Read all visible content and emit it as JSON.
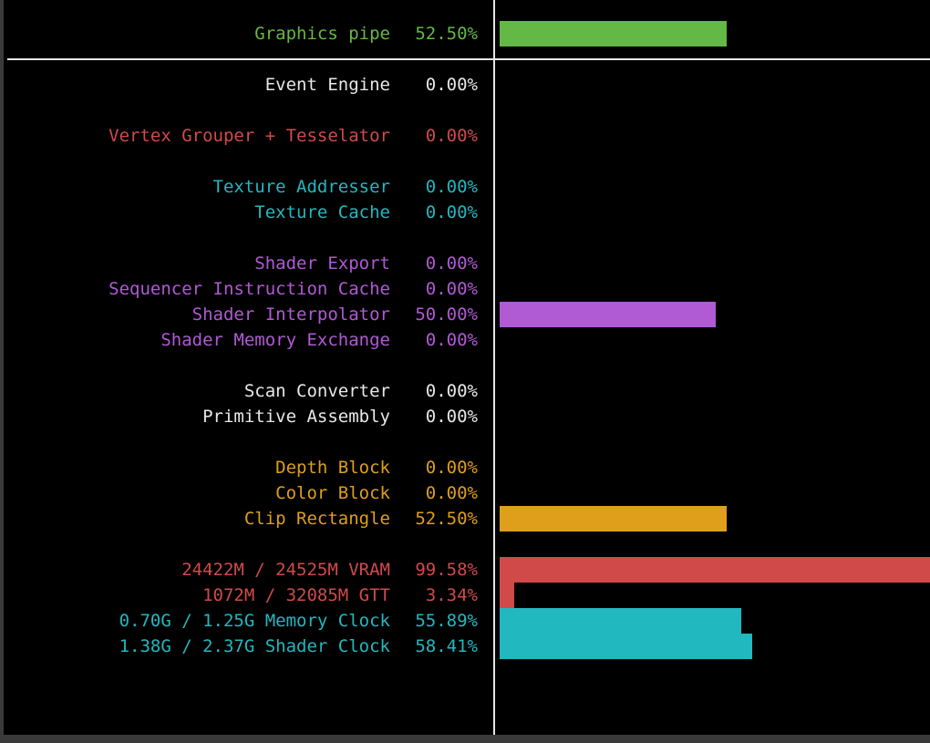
{
  "colors": {
    "green": "#64b846",
    "white": "#e8e8e8",
    "red": "#d04a4a",
    "cyan": "#22b8c0",
    "purple": "#b05ad4",
    "orange": "#df9f1a"
  },
  "header": {
    "label": "Graphics pipe",
    "percent": "52.50%",
    "value": 52.5,
    "color": "green"
  },
  "rows": [
    {
      "label": "Event Engine",
      "percent": "0.00%",
      "value": 0.0,
      "color": "white"
    },
    {
      "label": "Vertex Grouper + Tesselator",
      "percent": "0.00%",
      "value": 0.0,
      "color": "red"
    },
    {
      "label": "Texture Addresser",
      "percent": "0.00%",
      "value": 0.0,
      "color": "cyan"
    },
    {
      "label": "Texture Cache",
      "percent": "0.00%",
      "value": 0.0,
      "color": "cyan"
    },
    {
      "label": "Shader Export",
      "percent": "0.00%",
      "value": 0.0,
      "color": "purple"
    },
    {
      "label": "Sequencer Instruction Cache",
      "percent": "0.00%",
      "value": 0.0,
      "color": "purple"
    },
    {
      "label": "Shader Interpolator",
      "percent": "50.00%",
      "value": 50.0,
      "color": "purple"
    },
    {
      "label": "Shader Memory Exchange",
      "percent": "0.00%",
      "value": 0.0,
      "color": "purple"
    },
    {
      "label": "Scan Converter",
      "percent": "0.00%",
      "value": 0.0,
      "color": "white"
    },
    {
      "label": "Primitive Assembly",
      "percent": "0.00%",
      "value": 0.0,
      "color": "white"
    },
    {
      "label": "Depth Block",
      "percent": "0.00%",
      "value": 0.0,
      "color": "orange"
    },
    {
      "label": "Color Block",
      "percent": "0.00%",
      "value": 0.0,
      "color": "orange"
    },
    {
      "label": "Clip Rectangle",
      "percent": "52.50%",
      "value": 52.5,
      "color": "orange"
    },
    {
      "label": "24422M / 24525M VRAM",
      "percent": "99.58%",
      "value": 99.58,
      "color": "red"
    },
    {
      "label": "1072M / 32085M GTT",
      "percent": "3.34%",
      "value": 3.34,
      "color": "red"
    },
    {
      "label": "0.70G / 1.25G Memory Clock",
      "percent": "55.89%",
      "value": 55.89,
      "color": "cyan"
    },
    {
      "label": "1.38G / 2.37G Shader Clock",
      "percent": "58.41%",
      "value": 58.41,
      "color": "cyan"
    }
  ]
}
